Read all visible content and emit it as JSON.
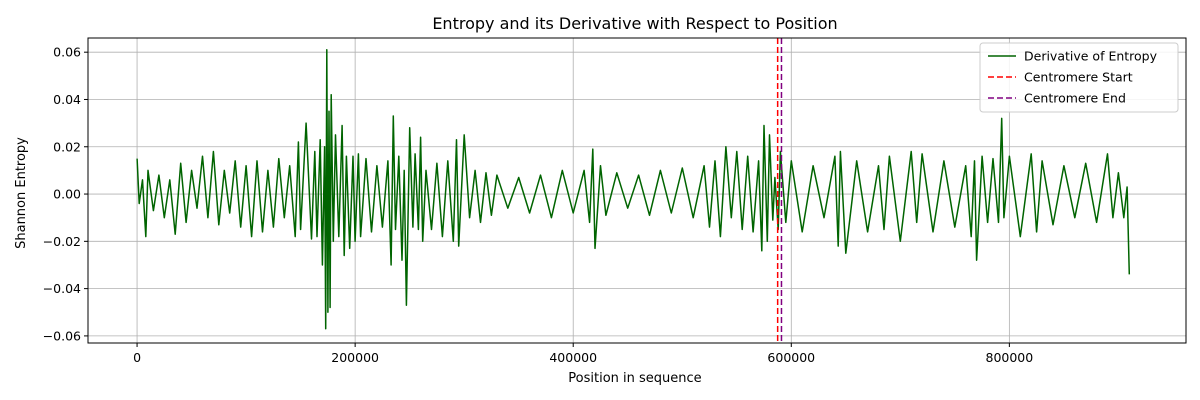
{
  "chart_data": {
    "type": "line",
    "title": "Entropy and its Derivative with Respect to Position",
    "xlabel": "Position in sequence",
    "ylabel": "Shannon Entropy",
    "xlim": [
      -45000,
      962000
    ],
    "ylim": [
      -0.063,
      0.066
    ],
    "x_ticks": [
      0,
      200000,
      400000,
      600000,
      800000
    ],
    "x_tick_labels": [
      "0",
      "200000",
      "400000",
      "600000",
      "800000"
    ],
    "y_ticks": [
      -0.06,
      -0.04,
      -0.02,
      0.0,
      0.02,
      0.04,
      0.06
    ],
    "y_tick_labels": [
      "−0.06",
      "−0.04",
      "−0.02",
      "0.00",
      "0.02",
      "0.04",
      "0.06"
    ],
    "grid": true,
    "legend_position": "top-right",
    "series": [
      {
        "name": "Derivative of Entropy",
        "color": "#006400",
        "style": "solid",
        "x": [
          0,
          2000,
          5000,
          8000,
          10000,
          15000,
          20000,
          25000,
          30000,
          35000,
          40000,
          45000,
          50000,
          55000,
          60000,
          65000,
          70000,
          75000,
          80000,
          85000,
          90000,
          95000,
          100000,
          105000,
          110000,
          115000,
          120000,
          125000,
          130000,
          135000,
          140000,
          145000,
          148000,
          150000,
          155000,
          160000,
          163000,
          165000,
          168000,
          170000,
          172000,
          173000,
          174000,
          175000,
          176000,
          177000,
          178000,
          180000,
          182000,
          185000,
          188000,
          190000,
          192000,
          195000,
          198000,
          200000,
          203000,
          205000,
          210000,
          215000,
          220000,
          225000,
          230000,
          233000,
          235000,
          237000,
          240000,
          243000,
          245000,
          247000,
          250000,
          253000,
          255000,
          258000,
          260000,
          262000,
          265000,
          270000,
          275000,
          280000,
          285000,
          290000,
          293000,
          295000,
          300000,
          305000,
          310000,
          315000,
          320000,
          325000,
          330000,
          340000,
          350000,
          360000,
          370000,
          380000,
          390000,
          400000,
          410000,
          415000,
          418000,
          420000,
          425000,
          430000,
          440000,
          450000,
          460000,
          470000,
          480000,
          490000,
          500000,
          510000,
          520000,
          525000,
          530000,
          535000,
          540000,
          545000,
          550000,
          555000,
          560000,
          565000,
          570000,
          573000,
          575000,
          578000,
          580000,
          583000,
          585000,
          588000,
          590000,
          595000,
          600000,
          610000,
          620000,
          630000,
          640000,
          643000,
          645000,
          650000,
          660000,
          670000,
          680000,
          685000,
          690000,
          700000,
          710000,
          715000,
          720000,
          730000,
          740000,
          750000,
          760000,
          765000,
          768000,
          770000,
          775000,
          780000,
          785000,
          790000,
          793000,
          795000,
          800000,
          810000,
          820000,
          825000,
          830000,
          840000,
          850000,
          860000,
          870000,
          880000,
          890000,
          895000,
          900000,
          905000,
          908000,
          910000
        ],
        "y": [
          0.015,
          -0.004,
          0.006,
          -0.018,
          0.01,
          -0.007,
          0.008,
          -0.01,
          0.006,
          -0.017,
          0.013,
          -0.012,
          0.01,
          -0.006,
          0.016,
          -0.01,
          0.018,
          -0.013,
          0.01,
          -0.008,
          0.014,
          -0.014,
          0.012,
          -0.018,
          0.014,
          -0.016,
          0.01,
          -0.014,
          0.015,
          -0.01,
          0.012,
          -0.018,
          0.022,
          -0.015,
          0.03,
          -0.019,
          0.018,
          -0.018,
          0.023,
          -0.03,
          0.02,
          -0.057,
          0.061,
          -0.05,
          0.035,
          -0.048,
          0.042,
          -0.02,
          0.025,
          -0.018,
          0.029,
          -0.026,
          0.016,
          -0.023,
          0.016,
          -0.02,
          0.017,
          -0.018,
          0.015,
          -0.016,
          0.012,
          -0.014,
          0.014,
          -0.03,
          0.033,
          -0.015,
          0.016,
          -0.028,
          0.01,
          -0.047,
          0.028,
          -0.014,
          0.017,
          -0.015,
          0.024,
          -0.02,
          0.01,
          -0.015,
          0.013,
          -0.018,
          0.014,
          -0.02,
          0.023,
          -0.022,
          0.025,
          -0.01,
          0.01,
          -0.012,
          0.009,
          -0.009,
          0.008,
          -0.006,
          0.007,
          -0.008,
          0.008,
          -0.01,
          0.01,
          -0.008,
          0.01,
          -0.012,
          0.019,
          -0.023,
          0.012,
          -0.009,
          0.009,
          -0.006,
          0.008,
          -0.009,
          0.01,
          -0.008,
          0.011,
          -0.01,
          0.012,
          -0.014,
          0.014,
          -0.018,
          0.02,
          -0.01,
          0.018,
          -0.015,
          0.016,
          -0.016,
          0.014,
          -0.024,
          0.029,
          -0.02,
          0.025,
          -0.011,
          0.007,
          -0.015,
          0.018,
          -0.012,
          0.014,
          -0.016,
          0.012,
          -0.01,
          0.016,
          -0.022,
          0.018,
          -0.025,
          0.014,
          -0.016,
          0.012,
          -0.015,
          0.016,
          -0.02,
          0.018,
          -0.012,
          0.017,
          -0.016,
          0.014,
          -0.014,
          0.012,
          -0.018,
          0.014,
          -0.028,
          0.016,
          -0.012,
          0.015,
          -0.012,
          0.032,
          -0.01,
          0.016,
          -0.018,
          0.017,
          -0.016,
          0.014,
          -0.013,
          0.012,
          -0.01,
          0.013,
          -0.012,
          0.017,
          -0.01,
          0.009,
          -0.01,
          0.003,
          -0.034
        ]
      },
      {
        "name": "Centromere Start",
        "color": "#ff0000",
        "style": "dashed",
        "x_line": 587500
      },
      {
        "name": "Centromere End",
        "color": "#800080",
        "style": "dashed",
        "x_line": 591000
      }
    ]
  }
}
